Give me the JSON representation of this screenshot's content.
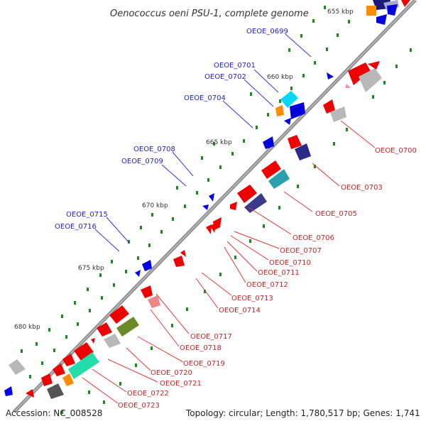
{
  "title": "Oenococcus oeni PSU-1, complete genome",
  "footer": {
    "accession": "Accession: NC_008528",
    "summary": "Topology: circular; Length: 1,780,517 bp; Genes: 1,741"
  },
  "ticks": [
    "655 kbp",
    "660 kbp",
    "665 kbp",
    "670 kbp",
    "675 kbp",
    "680 kbp"
  ],
  "genes_left": [
    "OEOE_0699",
    "OEOE_0701",
    "OEOE_0702",
    "OEOE_0704",
    "OEOE_0708",
    "OEOE_0709",
    "OEOE_0715",
    "OEOE_0716"
  ],
  "genes_right": [
    "OEOE_0700",
    "OEOE_0703",
    "OEOE_0705",
    "OEOE_0706",
    "OEOE_0707",
    "OEOE_0710",
    "OEOE_0711",
    "OEOE_0712",
    "OEOE_0713",
    "OEOE_0714",
    "OEOE_0717",
    "OEOE_0718",
    "OEOE_0719",
    "OEOE_0720",
    "OEOE_0721",
    "OEOE_0722",
    "OEOE_0723"
  ],
  "colors": {
    "forward": "#0000ee",
    "reverse": "#ee0000",
    "backbone": "#888888",
    "tick": "#1a8a1a"
  }
}
